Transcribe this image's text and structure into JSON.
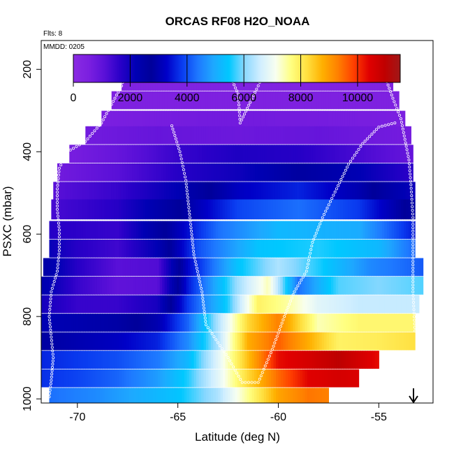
{
  "chart_data": {
    "type": "heatmap",
    "title": "ORCAS RF08 H2O_NOAA",
    "flights_label": "Flts: 8",
    "date_label": "MMDD: 0205",
    "xlabel": "Latitude (deg N)",
    "ylabel": "PSXC (mbar)",
    "xlim": [
      -71.8,
      -52.3
    ],
    "ylim": [
      1010,
      130
    ],
    "x_ticks": [
      -70,
      -65,
      -60,
      -55
    ],
    "y_ticks": [
      200,
      400,
      600,
      800,
      1000
    ],
    "colorbar": {
      "range": [
        0,
        11500
      ],
      "ticks": [
        0,
        2000,
        4000,
        6000,
        8000,
        10000
      ],
      "colors": [
        "#8a2be2",
        "#7b1fe0",
        "#5a10d8",
        "#2a00c8",
        "#0000b4",
        "#00009a",
        "#0000c8",
        "#0a3cf0",
        "#1e78ff",
        "#1ea8ff",
        "#00c8ff",
        "#8ad8ff",
        "#d0eeff",
        "#f8fff0",
        "#ffff80",
        "#ffe040",
        "#ffb000",
        "#ff8000",
        "#ff4000",
        "#e00000",
        "#c00000",
        "#a01818"
      ]
    },
    "pressure_levels": [
      185,
      230,
      275,
      320,
      360,
      405,
      450,
      495,
      540,
      590,
      635,
      680,
      725,
      770,
      815,
      860,
      905,
      950,
      995
    ],
    "rows": [
      {
        "p": 185,
        "lat_min": -67.5,
        "lat_max": -54.8,
        "x": [
          -67.5,
          -54.8
        ],
        "v": [
          300,
          300
        ]
      },
      {
        "p": 230,
        "lat_min": -67.8,
        "lat_max": -54.3,
        "x": [
          -67.8,
          -54.3
        ],
        "v": [
          350,
          350
        ]
      },
      {
        "p": 275,
        "lat_min": -68.3,
        "lat_max": -54.0,
        "x": [
          -68.3,
          -54.0
        ],
        "v": [
          450,
          450
        ]
      },
      {
        "p": 320,
        "lat_min": -68.8,
        "lat_max": -53.7,
        "x": [
          -68.8,
          -63,
          -58,
          -53.7
        ],
        "v": [
          550,
          700,
          650,
          550
        ]
      },
      {
        "p": 360,
        "lat_min": -69.6,
        "lat_max": -53.4,
        "x": [
          -69.6,
          -66,
          -62,
          -58,
          -53.4
        ],
        "v": [
          700,
          900,
          800,
          900,
          650
        ]
      },
      {
        "p": 405,
        "lat_min": -70.4,
        "lat_max": -53.3,
        "x": [
          -70.4,
          -68,
          -65,
          -62,
          -59,
          -56,
          -53.3
        ],
        "v": [
          600,
          900,
          1500,
          1800,
          1700,
          1300,
          900
        ]
      },
      {
        "p": 450,
        "lat_min": -71.0,
        "lat_max": -53.3,
        "x": [
          -71.0,
          -68,
          -65,
          -62,
          -59,
          -56,
          -53.3
        ],
        "v": [
          700,
          1100,
          1700,
          2000,
          2600,
          2200,
          1600
        ]
      },
      {
        "p": 495,
        "lat_min": -71.2,
        "lat_max": -53.2,
        "x": [
          -71.2,
          -68,
          -65,
          -62,
          -59,
          -56,
          -53.2
        ],
        "v": [
          1100,
          1500,
          2200,
          3200,
          3600,
          3000,
          2000
        ]
      },
      {
        "p": 540,
        "lat_min": -71.3,
        "lat_max": -53.2,
        "x": [
          -71.3,
          -68,
          -65,
          -62,
          -59,
          -56,
          -53.2
        ],
        "v": [
          1300,
          1700,
          2700,
          3900,
          4300,
          3800,
          2500
        ]
      },
      {
        "p": 590,
        "lat_min": -71.4,
        "lat_max": -53.2,
        "x": [
          -71.4,
          -68,
          -65.5,
          -63,
          -60,
          -56,
          -53.2
        ],
        "v": [
          1700,
          1500,
          2800,
          4300,
          5200,
          5000,
          3500
        ]
      },
      {
        "p": 635,
        "lat_min": -71.4,
        "lat_max": -53.2,
        "x": [
          -71.4,
          -70,
          -68,
          -66,
          -64,
          -61,
          -58,
          -55,
          -53.2
        ],
        "v": [
          2100,
          1700,
          1400,
          2200,
          4000,
          5400,
          5600,
          5200,
          4200
        ]
      },
      {
        "p": 680,
        "lat_min": -71.7,
        "lat_max": -52.8,
        "x": [
          -71.7,
          -70,
          -68,
          -66,
          -64.5,
          -62,
          -60,
          -58,
          -55.5,
          -52.8
        ],
        "v": [
          2500,
          1700,
          1100,
          1200,
          3300,
          5400,
          6300,
          5600,
          4600,
          4100
        ]
      },
      {
        "p": 725,
        "lat_min": -71.9,
        "lat_max": -52.8,
        "x": [
          -71.9,
          -70,
          -68,
          -66,
          -64.5,
          -62,
          -60.5,
          -59,
          -57,
          -55,
          -52.8
        ],
        "v": [
          2400,
          1500,
          1000,
          1100,
          3500,
          6200,
          7400,
          4300,
          5800,
          6000,
          5800
        ]
      },
      {
        "p": 770,
        "lat_min": -72.0,
        "lat_max": -53.0,
        "x": [
          -72.0,
          -70,
          -68,
          -66,
          -64.5,
          -62.5,
          -61,
          -59.5,
          -58,
          -56,
          -53.0
        ],
        "v": [
          2000,
          1500,
          1500,
          1900,
          3800,
          5600,
          7900,
          7500,
          6800,
          6500,
          6500
        ]
      },
      {
        "p": 815,
        "lat_min": -72.0,
        "lat_max": -53.2,
        "x": [
          -72.0,
          -70,
          -68,
          -66,
          -64.5,
          -63,
          -61.5,
          -60,
          -58,
          -56,
          -53.2
        ],
        "v": [
          2200,
          2300,
          2500,
          3000,
          4200,
          6300,
          8300,
          9300,
          7400,
          7800,
          7800
        ]
      },
      {
        "p": 860,
        "lat_min": -72.0,
        "lat_max": -53.2,
        "x": [
          -72.0,
          -70,
          -68,
          -66,
          -64.5,
          -63,
          -61.5,
          -60,
          -58.5,
          -57,
          -55,
          -53.2
        ],
        "v": [
          2800,
          3000,
          3200,
          3600,
          4600,
          6300,
          8800,
          9600,
          8800,
          7900,
          8000,
          8200
        ]
      },
      {
        "p": 905,
        "lat_min": -72.0,
        "lat_max": -55.0,
        "x": [
          -72.0,
          -70,
          -68,
          -66,
          -64.5,
          -63,
          -61.5,
          -60,
          -58.5,
          -57,
          -55.0
        ],
        "v": [
          3600,
          3800,
          4000,
          4400,
          5200,
          6800,
          8600,
          10300,
          10600,
          11000,
          10300
        ]
      },
      {
        "p": 950,
        "lat_min": -72.0,
        "lat_max": -56.0,
        "x": [
          -72.0,
          -70,
          -68,
          -66,
          -64.5,
          -63,
          -61.5,
          -60,
          -58.5,
          -57,
          -56.0
        ],
        "v": [
          3700,
          3900,
          4200,
          4800,
          5600,
          6800,
          8300,
          9500,
          10400,
          10600,
          10500
        ]
      },
      {
        "p": 995,
        "lat_min": -71.4,
        "lat_max": -57.5,
        "x": [
          -71.4,
          -69,
          -67,
          -65,
          -63,
          -61.5,
          -60,
          -58.5,
          -57.5
        ],
        "v": [
          4300,
          4600,
          5000,
          5400,
          6300,
          7600,
          8900,
          9400,
          9300
        ]
      }
    ],
    "flight_track": [
      [
        -71.4,
        995
      ],
      [
        -71.3,
        955
      ],
      [
        -71.2,
        900
      ],
      [
        -71.3,
        850
      ],
      [
        -71.4,
        800
      ],
      [
        -71.3,
        740
      ],
      [
        -71.0,
        690
      ],
      [
        -70.9,
        640
      ],
      [
        -70.9,
        590
      ],
      [
        -71.0,
        540
      ],
      [
        -71.0,
        490
      ],
      [
        -70.9,
        440
      ],
      [
        -70.5,
        400
      ],
      [
        -69.6,
        375
      ],
      [
        -68.8,
        330
      ],
      [
        -68.3,
        285
      ],
      [
        -67.8,
        240
      ],
      [
        -67.5,
        190
      ],
      [
        -65.6,
        187
      ],
      [
        -66.0,
        210
      ],
      [
        -65.2,
        187
      ],
      [
        -63.0,
        187
      ],
      [
        -62.4,
        215
      ],
      [
        -62.0,
        260
      ],
      [
        -61.9,
        330
      ],
      [
        -61.4,
        280
      ],
      [
        -61.0,
        240
      ],
      [
        -60.7,
        205
      ],
      [
        -60.6,
        187
      ],
      [
        -57.5,
        187
      ],
      [
        -55.0,
        187
      ],
      [
        -54.6,
        230
      ],
      [
        -54.3,
        270
      ],
      [
        -53.9,
        320
      ],
      [
        -53.7,
        370
      ],
      [
        -53.5,
        420
      ],
      [
        -53.4,
        480
      ],
      [
        -53.3,
        560
      ],
      [
        -53.3,
        650
      ],
      [
        -53.3,
        740
      ],
      [
        -53.2,
        835
      ],
      [
        -65.3,
        337
      ],
      [
        -64.9,
        400
      ],
      [
        -64.6,
        470
      ],
      [
        -64.4,
        560
      ],
      [
        -64.2,
        650
      ],
      [
        -63.8,
        740
      ],
      [
        -63.6,
        820
      ],
      [
        -62.5,
        900
      ],
      [
        -61.8,
        960
      ],
      [
        -61.0,
        960
      ],
      [
        -60.3,
        880
      ],
      [
        -59.7,
        800
      ],
      [
        -59.2,
        740
      ],
      [
        -58.6,
        690
      ],
      [
        -58.3,
        620
      ],
      [
        -57.8,
        560
      ],
      [
        -57.1,
        490
      ],
      [
        -56.5,
        430
      ],
      [
        -55.8,
        380
      ],
      [
        -55.0,
        340
      ],
      [
        -54.2,
        330
      ]
    ]
  }
}
